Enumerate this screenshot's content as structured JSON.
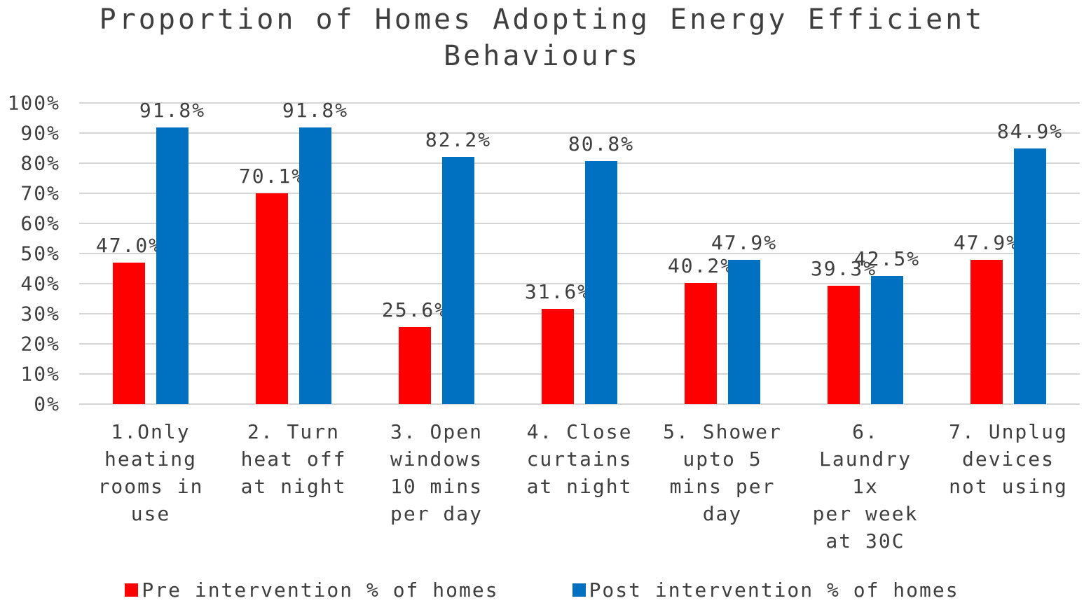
{
  "chart_data": {
    "type": "bar",
    "title": "Proportion of Homes Adopting Energy Efficient Behaviours",
    "categories": [
      "1.Only\nheating\nrooms in\nuse",
      "2. Turn\nheat off\nat night",
      "3. Open\nwindows\n10 mins\nper day",
      "4. Close\ncurtains\nat night",
      "5. Shower\nupto 5\nmins per\nday",
      "6.\nLaundry\n1x\nper week\nat 30C",
      "7. Unplug\ndevices\nnot using"
    ],
    "series": [
      {
        "name": "Pre intervention % of homes",
        "color": "#FF0000",
        "values": [
          47.0,
          70.1,
          25.6,
          31.6,
          40.2,
          39.3,
          47.9
        ],
        "labels": [
          "47.0%",
          "70.1%",
          "25.6%",
          "31.6%",
          "40.2%",
          "39.3%",
          "47.9%"
        ]
      },
      {
        "name": "Post intervention % of homes",
        "color": "#0070C0",
        "values": [
          91.8,
          91.8,
          82.2,
          80.8,
          47.9,
          42.5,
          84.9
        ],
        "labels": [
          "91.8%",
          "91.8%",
          "82.2%",
          "80.8%",
          "47.9%",
          "42.5%",
          "84.9%"
        ]
      }
    ],
    "yticks": [
      "0%",
      "10%",
      "20%",
      "30%",
      "40%",
      "50%",
      "60%",
      "70%",
      "80%",
      "90%",
      "100%"
    ],
    "ylim": [
      0,
      100
    ],
    "grid": true,
    "legend_position": "bottom",
    "colors": {
      "grid": "#D6D6D6",
      "text": "#3F3F3F",
      "background": "#FFFFFF"
    }
  }
}
